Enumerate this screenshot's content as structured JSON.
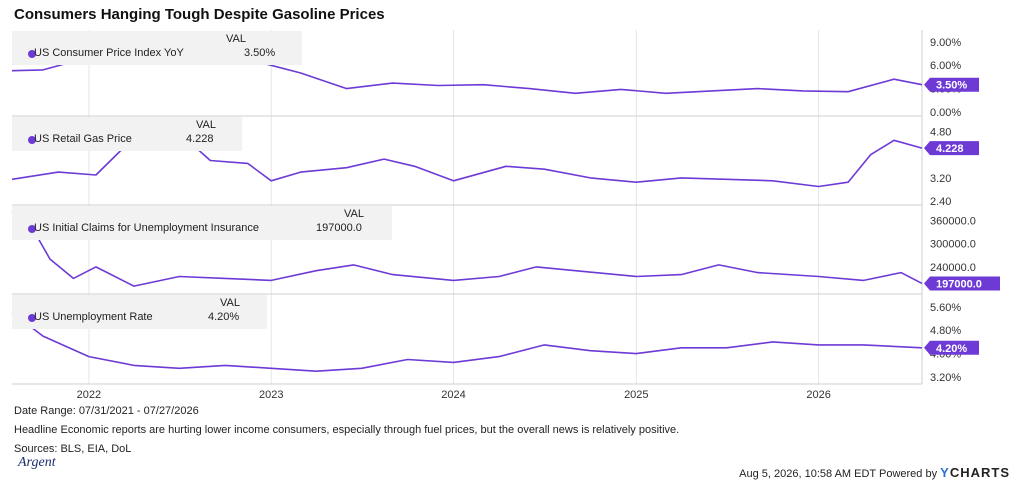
{
  "title": "Consumers Hanging Tough Despite Gasoline Prices",
  "accent_color": "#6e3ad6",
  "legend_header": "VAL",
  "x_ticks": [
    "2022",
    "2023",
    "2024",
    "2025",
    "2026"
  ],
  "footer": {
    "date_range": "Date Range: 07/31/2021 - 07/27/2026",
    "note": "Headline Economic reports are hurting lower income consumers, especially through fuel prices, but the overall news is relatively positive.",
    "sources": "Sources: BLS, EIA, DoL",
    "timestamp": "Aug 5, 2026, 10:58 AM EDT Powered by",
    "brand_logo_text": "Argent",
    "ycharts_y": "Y",
    "ycharts_rest": "CHARTS"
  },
  "chart_data": [
    {
      "type": "line",
      "name": "US Consumer Price Index YoY",
      "value_label": "3.50%",
      "x_range": [
        "2021-07-31",
        "2026-07-27"
      ],
      "y_ticks": [
        "9.00%",
        "6.00%",
        "3.00%",
        "0.00%"
      ],
      "ylim": [
        0,
        10
      ],
      "x": [
        "2021-07-31",
        "2021-10-01",
        "2022-01-01",
        "2022-04-01",
        "2022-06-15",
        "2022-09-01",
        "2022-12-01",
        "2023-03-01",
        "2023-06-01",
        "2023-09-01",
        "2023-12-01",
        "2024-03-01",
        "2024-06-01",
        "2024-09-01",
        "2024-12-01",
        "2025-03-01",
        "2025-06-01",
        "2025-09-01",
        "2025-12-01",
        "2026-03-01",
        "2026-06-01",
        "2026-07-27"
      ],
      "values": [
        5.3,
        5.4,
        7.0,
        8.3,
        9.0,
        8.2,
        6.5,
        5.0,
        3.0,
        3.7,
        3.4,
        3.5,
        3.0,
        2.4,
        2.9,
        2.4,
        2.7,
        3.0,
        2.7,
        2.6,
        4.2,
        3.5
      ]
    },
    {
      "type": "line",
      "name": "US Retail Gas Price",
      "value_label": "4.228",
      "x_range": [
        "2021-07-31",
        "2026-07-27"
      ],
      "y_ticks": [
        "4.80",
        "3.20",
        "2.40"
      ],
      "ylim": [
        2.4,
        5.2
      ],
      "x": [
        "2021-07-31",
        "2021-11-01",
        "2022-01-15",
        "2022-03-15",
        "2022-06-15",
        "2022-09-01",
        "2022-11-15",
        "2023-01-01",
        "2023-03-01",
        "2023-06-01",
        "2023-08-15",
        "2023-10-15",
        "2024-01-01",
        "2024-04-15",
        "2024-07-01",
        "2024-10-01",
        "2025-01-01",
        "2025-04-01",
        "2025-07-01",
        "2025-10-01",
        "2026-01-01",
        "2026-03-01",
        "2026-04-15",
        "2026-06-01",
        "2026-07-27"
      ],
      "values": [
        3.15,
        3.4,
        3.3,
        4.3,
        5.0,
        3.8,
        3.7,
        3.1,
        3.4,
        3.55,
        3.85,
        3.6,
        3.1,
        3.6,
        3.5,
        3.2,
        3.05,
        3.2,
        3.15,
        3.1,
        2.9,
        3.05,
        4.0,
        4.5,
        4.228
      ]
    },
    {
      "type": "line",
      "name": "US Initial Claims for Unemployment Insurance",
      "value_label": "197000.0",
      "x_range": [
        "2021-07-31",
        "2026-07-27"
      ],
      "y_ticks": [
        "360000.0",
        "300000.0",
        "240000.0"
      ],
      "ylim": [
        180000,
        390000
      ],
      "x": [
        "2021-07-31",
        "2021-09-01",
        "2021-10-15",
        "2021-12-01",
        "2022-01-15",
        "2022-04-01",
        "2022-07-01",
        "2022-10-01",
        "2023-01-01",
        "2023-04-01",
        "2023-06-15",
        "2023-09-01",
        "2024-01-01",
        "2024-04-01",
        "2024-06-15",
        "2024-09-01",
        "2025-01-01",
        "2025-04-01",
        "2025-06-15",
        "2025-09-01",
        "2026-01-01",
        "2026-04-01",
        "2026-06-15",
        "2026-07-27"
      ],
      "values": [
        385000,
        360000,
        260000,
        210000,
        240000,
        190000,
        215000,
        210000,
        205000,
        230000,
        245000,
        220000,
        205000,
        215000,
        240000,
        230000,
        215000,
        220000,
        245000,
        225000,
        215000,
        205000,
        225000,
        197000
      ]
    },
    {
      "type": "line",
      "name": "US Unemployment Rate",
      "value_label": "4.20%",
      "x_range": [
        "2021-07-31",
        "2026-07-27"
      ],
      "y_ticks": [
        "5.60%",
        "4.80%",
        "4.00%",
        "3.20%"
      ],
      "ylim": [
        3.1,
        5.9
      ],
      "x": [
        "2021-07-31",
        "2021-10-01",
        "2022-01-01",
        "2022-04-01",
        "2022-07-01",
        "2022-10-01",
        "2023-01-01",
        "2023-04-01",
        "2023-07-01",
        "2023-10-01",
        "2024-01-01",
        "2024-04-01",
        "2024-07-01",
        "2024-10-01",
        "2025-01-01",
        "2025-04-01",
        "2025-07-01",
        "2025-10-01",
        "2026-01-01",
        "2026-04-01",
        "2026-07-27"
      ],
      "values": [
        5.4,
        4.6,
        3.9,
        3.6,
        3.5,
        3.6,
        3.5,
        3.4,
        3.5,
        3.8,
        3.7,
        3.9,
        4.3,
        4.1,
        4.0,
        4.2,
        4.2,
        4.4,
        4.3,
        4.3,
        4.2
      ]
    }
  ]
}
